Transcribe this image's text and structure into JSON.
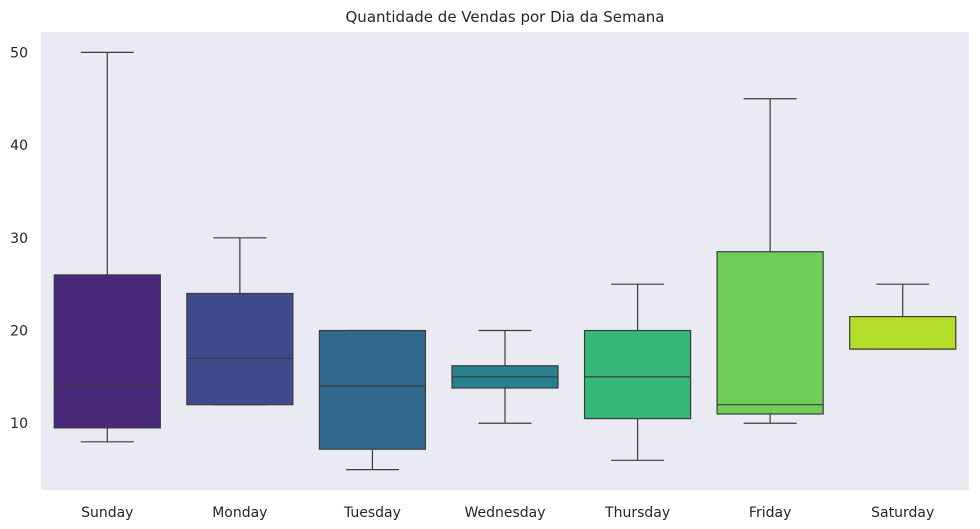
{
  "chart_data": {
    "type": "box",
    "title": "Quantidade de Vendas por Dia da Semana",
    "xlabel": "",
    "ylabel": "",
    "ylim": [
      2.8,
      52.2
    ],
    "yticks": [
      10,
      20,
      30,
      40,
      50
    ],
    "grid": false,
    "plot_background": "#eaeaf2",
    "categories": [
      "Sunday",
      "Monday",
      "Tuesday",
      "Wednesday",
      "Thursday",
      "Friday",
      "Saturday"
    ],
    "boxes": [
      {
        "category": "Sunday",
        "whisker_low": 8,
        "q1": 9.5,
        "median": 14,
        "q3": 26,
        "whisker_high": 50,
        "color": "#482878"
      },
      {
        "category": "Monday",
        "whisker_low": 12,
        "q1": 12,
        "median": 17,
        "q3": 24,
        "whisker_high": 30,
        "color": "#3e4a89"
      },
      {
        "category": "Tuesday",
        "whisker_low": 5,
        "q1": 7.2,
        "median": 14,
        "q3": 20,
        "whisker_high": 20,
        "color": "#31688e"
      },
      {
        "category": "Wednesday",
        "whisker_low": 10,
        "q1": 13.8,
        "median": 15,
        "q3": 16.2,
        "whisker_high": 20,
        "color": "#26828e"
      },
      {
        "category": "Thursday",
        "whisker_low": 6,
        "q1": 10.5,
        "median": 15,
        "q3": 20,
        "whisker_high": 25,
        "color": "#35b779"
      },
      {
        "category": "Friday",
        "whisker_low": 10,
        "q1": 11,
        "median": 12,
        "q3": 28.5,
        "whisker_high": 45,
        "color": "#6ece58"
      },
      {
        "category": "Saturday",
        "whisker_low": 18,
        "q1": 18,
        "median": 18,
        "q3": 21.5,
        "whisker_high": 25,
        "color": "#b5de2b"
      }
    ]
  }
}
